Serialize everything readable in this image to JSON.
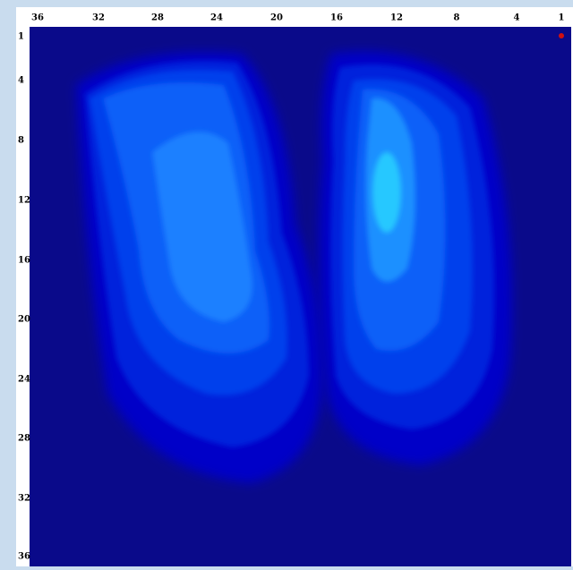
{
  "top_labels": [
    36,
    32,
    28,
    24,
    20,
    16,
    12,
    8,
    4,
    1
  ],
  "left_labels": [
    1,
    4,
    8,
    12,
    16,
    20,
    24,
    28,
    32,
    36
  ]
}
